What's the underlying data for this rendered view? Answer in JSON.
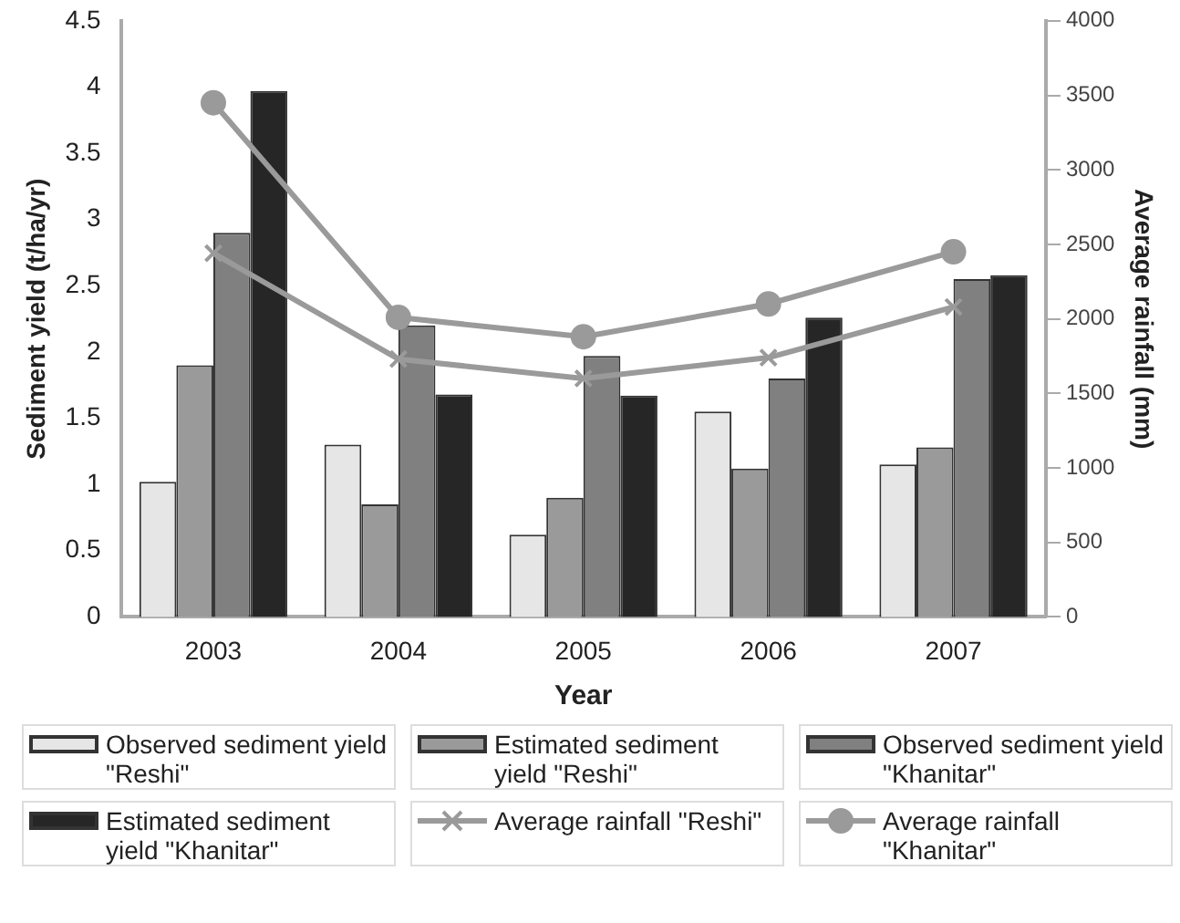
{
  "chart_data": {
    "type": "bar",
    "xlabel": "Year",
    "ylabel": "Sediment yield (t/ha/yr)",
    "y2label": "Average rainfall (mm)",
    "categories": [
      "2003",
      "2004",
      "2005",
      "2006",
      "2007"
    ],
    "series": [
      {
        "name": "Observed sediment yield \"Reshi\"",
        "color": "#e6e6e6",
        "values": [
          1.02,
          1.3,
          0.62,
          1.55,
          1.15
        ]
      },
      {
        "name": "Estimated sediment yield \"Reshi\"",
        "color": "#9a9a9a",
        "values": [
          1.9,
          0.85,
          0.9,
          1.12,
          1.28
        ]
      },
      {
        "name": "Observed sediment yield \"Khanitar\"",
        "color": "#808080",
        "values": [
          2.9,
          2.2,
          1.97,
          1.8,
          2.55
        ]
      },
      {
        "name": "Estimated sediment yield \"Khanitar\"",
        "color": "#262626",
        "values": [
          3.97,
          1.68,
          1.67,
          2.26,
          2.58
        ]
      },
      {
        "name": "Average rainfall \"Reshi\"",
        "type": "line",
        "axis": "y2",
        "marker": "cross",
        "color": "#9a9a9a",
        "values": [
          2440,
          1730,
          1600,
          1740,
          2080
        ]
      },
      {
        "name": "Average rainfall \"Khanitar\"",
        "type": "line",
        "axis": "y2",
        "marker": "circle",
        "color": "#9a9a9a",
        "values": [
          3450,
          2010,
          1880,
          2100,
          2450
        ]
      }
    ],
    "ylim": [
      0,
      4.5
    ],
    "yticks": [
      0,
      0.5,
      1,
      1.5,
      2,
      2.5,
      3,
      3.5,
      4,
      4.5
    ],
    "y2lim": [
      0,
      4000
    ],
    "y2ticks": [
      0,
      500,
      1000,
      1500,
      2000,
      2500,
      3000,
      3500,
      4000
    ],
    "grid": false,
    "legend": "bottom"
  }
}
